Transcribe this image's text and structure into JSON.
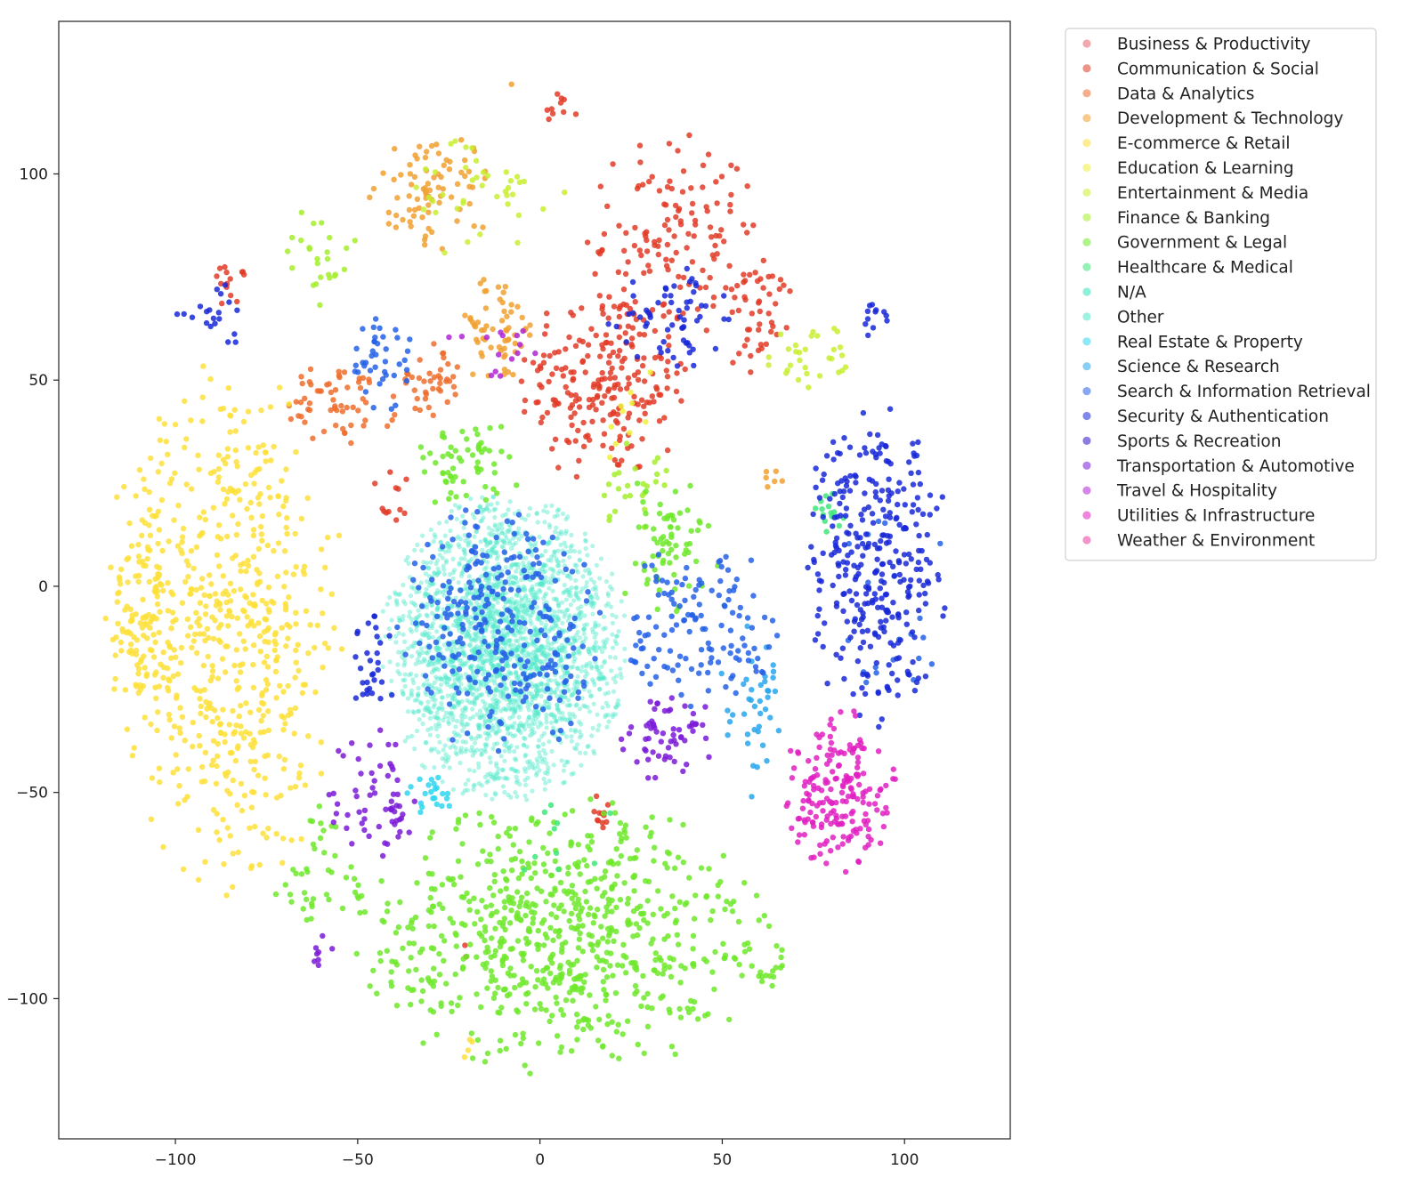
{
  "chart_data": {
    "type": "scatter",
    "title": "",
    "xlabel": "",
    "ylabel": "",
    "xlim": [
      -132,
      129
    ],
    "ylim": [
      -134,
      137
    ],
    "xticks": [
      -100,
      -50,
      0,
      50,
      100
    ],
    "yticks": [
      -100,
      -50,
      0,
      50,
      100
    ],
    "xtick_labels": [
      "−100",
      "−50",
      "0",
      "50",
      "100"
    ],
    "ytick_labels": [
      "−100",
      "−50",
      "0",
      "50",
      "100"
    ],
    "grid": false,
    "legend_position": "outside-top-right",
    "point_alpha": 0.75,
    "series": [
      {
        "name": "Business & Productivity",
        "color": "#e8626b",
        "clusters": []
      },
      {
        "name": "Communication & Social",
        "color": "#e23b27",
        "clusters": [
          {
            "cx": 18,
            "cy": 50,
            "rx": 22,
            "ry": 22,
            "n": 230
          },
          {
            "cx": 38,
            "cy": 85,
            "rx": 22,
            "ry": 22,
            "n": 130
          },
          {
            "cx": 60,
            "cy": 65,
            "rx": 10,
            "ry": 14,
            "n": 40
          },
          {
            "cx": -85,
            "cy": 73,
            "rx": 4,
            "ry": 5,
            "n": 14
          },
          {
            "cx": -40,
            "cy": 22,
            "rx": 6,
            "ry": 7,
            "n": 12
          },
          {
            "cx": 17,
            "cy": -56,
            "rx": 4,
            "ry": 5,
            "n": 12
          },
          {
            "cx": 5,
            "cy": 115,
            "rx": 5,
            "ry": 4,
            "n": 10
          },
          {
            "cx": -20,
            "cy": -88,
            "rx": 2,
            "ry": 2,
            "n": 2
          }
        ]
      },
      {
        "name": "Data & Analytics",
        "color": "#ee6d2d",
        "clusters": [
          {
            "cx": -55,
            "cy": 45,
            "rx": 14,
            "ry": 10,
            "n": 60
          },
          {
            "cx": -30,
            "cy": 50,
            "rx": 8,
            "ry": 8,
            "n": 40
          }
        ]
      },
      {
        "name": "Development & Technology",
        "color": "#f0a030",
        "clusters": [
          {
            "cx": -30,
            "cy": 95,
            "rx": 15,
            "ry": 14,
            "n": 80
          },
          {
            "cx": -12,
            "cy": 62,
            "rx": 12,
            "ry": 12,
            "n": 60
          },
          {
            "cx": 64,
            "cy": 26,
            "rx": 3,
            "ry": 3,
            "n": 6
          },
          {
            "cx": -8,
            "cy": 125,
            "rx": 1,
            "ry": 1,
            "n": 1
          }
        ]
      },
      {
        "name": "E-commerce & Retail",
        "color": "#fde03a",
        "clusters": [
          {
            "cx": -85,
            "cy": -10,
            "rx": 28,
            "ry": 58,
            "n": 560
          },
          {
            "cx": -108,
            "cy": -5,
            "rx": 10,
            "ry": 35,
            "n": 120
          },
          {
            "cx": -20,
            "cy": -112,
            "rx": 2,
            "ry": 3,
            "n": 4
          }
        ]
      },
      {
        "name": "Education & Learning",
        "color": "#eef13c",
        "clusters": [
          {
            "cx": 25,
            "cy": 40,
            "rx": 10,
            "ry": 12,
            "n": 10
          }
        ]
      },
      {
        "name": "Entertainment & Media",
        "color": "#c8ef30",
        "clusters": [
          {
            "cx": -15,
            "cy": 95,
            "rx": 20,
            "ry": 15,
            "n": 40
          },
          {
            "cx": 75,
            "cy": 55,
            "rx": 12,
            "ry": 8,
            "n": 30
          }
        ]
      },
      {
        "name": "Finance & Banking",
        "color": "#a4ef2c",
        "clusters": [
          {
            "cx": -60,
            "cy": 80,
            "rx": 10,
            "ry": 12,
            "n": 25
          },
          {
            "cx": 25,
            "cy": 25,
            "rx": 10,
            "ry": 10,
            "n": 25
          }
        ]
      },
      {
        "name": "Government & Legal",
        "color": "#6ee92a",
        "clusters": [
          {
            "cx": 5,
            "cy": -85,
            "rx": 52,
            "ry": 30,
            "n": 720
          },
          {
            "cx": -20,
            "cy": 30,
            "rx": 15,
            "ry": 10,
            "n": 60
          },
          {
            "cx": 35,
            "cy": 10,
            "rx": 15,
            "ry": 15,
            "n": 70
          },
          {
            "cx": -60,
            "cy": -70,
            "rx": 15,
            "ry": 15,
            "n": 40
          },
          {
            "cx": 62,
            "cy": -90,
            "rx": 10,
            "ry": 8,
            "n": 20
          }
        ]
      },
      {
        "name": "Healthcare & Medical",
        "color": "#3ee87a",
        "clusters": [
          {
            "cx": 80,
            "cy": 18,
            "rx": 5,
            "ry": 5,
            "n": 14
          },
          {
            "cx": 5,
            "cy": -60,
            "rx": 15,
            "ry": 10,
            "n": 10
          }
        ]
      },
      {
        "name": "N/A",
        "color": "#30e4b8",
        "clusters": []
      },
      {
        "name": "Other",
        "color": "#4fe8c9",
        "clusters": [
          {
            "cx": -10,
            "cy": -15,
            "rx": 30,
            "ry": 33,
            "n": 2600
          }
        ]
      },
      {
        "name": "Real Estate & Property",
        "color": "#2fd6f0",
        "clusters": [
          {
            "cx": -30,
            "cy": -50,
            "rx": 6,
            "ry": 5,
            "n": 22
          }
        ]
      },
      {
        "name": "Science & Research",
        "color": "#28a6ee",
        "clusters": [
          {
            "cx": 58,
            "cy": -30,
            "rx": 8,
            "ry": 20,
            "n": 40
          }
        ]
      },
      {
        "name": "Search & Information Retrieval",
        "color": "#2460e6",
        "clusters": [
          {
            "cx": 45,
            "cy": -10,
            "rx": 20,
            "ry": 20,
            "n": 130
          },
          {
            "cx": -10,
            "cy": -10,
            "rx": 26,
            "ry": 28,
            "n": 280
          },
          {
            "cx": -45,
            "cy": 55,
            "rx": 10,
            "ry": 12,
            "n": 40
          },
          {
            "cx": 98,
            "cy": 0,
            "rx": 16,
            "ry": 25,
            "n": 20
          }
        ]
      },
      {
        "name": "Security & Authentication",
        "color": "#1828d8",
        "clusters": [
          {
            "cx": 92,
            "cy": 5,
            "rx": 18,
            "ry": 35,
            "n": 320
          },
          {
            "cx": 35,
            "cy": 65,
            "rx": 15,
            "ry": 12,
            "n": 60
          },
          {
            "cx": -45,
            "cy": -20,
            "rx": 6,
            "ry": 12,
            "n": 30
          },
          {
            "cx": -90,
            "cy": 65,
            "rx": 10,
            "ry": 10,
            "n": 20
          },
          {
            "cx": 93,
            "cy": 65,
            "rx": 5,
            "ry": 5,
            "n": 12
          }
        ]
      },
      {
        "name": "Sports & Recreation",
        "color": "#3210c8",
        "clusters": []
      },
      {
        "name": "Transportation & Automotive",
        "color": "#7b1ad8",
        "clusters": [
          {
            "cx": -45,
            "cy": -50,
            "rx": 12,
            "ry": 15,
            "n": 60
          },
          {
            "cx": 35,
            "cy": -35,
            "rx": 12,
            "ry": 12,
            "n": 60
          },
          {
            "cx": -60,
            "cy": -90,
            "rx": 3,
            "ry": 5,
            "n": 8
          }
        ]
      },
      {
        "name": "Travel & Hospitality",
        "color": "#b025d6",
        "clusters": [
          {
            "cx": -10,
            "cy": 60,
            "rx": 15,
            "ry": 10,
            "n": 15
          }
        ]
      },
      {
        "name": "Utilities & Infrastructure",
        "color": "#e020c2",
        "clusters": [
          {
            "cx": 82,
            "cy": -50,
            "rx": 14,
            "ry": 18,
            "n": 190
          }
        ]
      },
      {
        "name": "Weather & Environment",
        "color": "#e73aa2",
        "clusters": []
      }
    ]
  }
}
